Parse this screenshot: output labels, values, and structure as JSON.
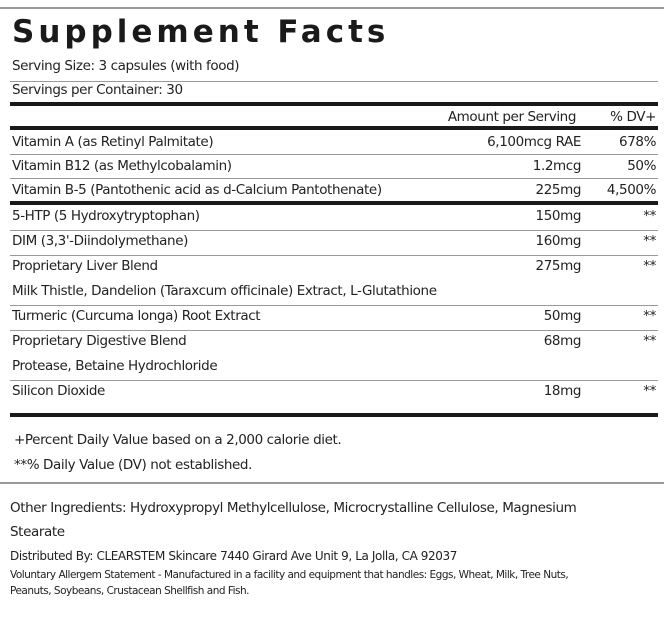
{
  "title": "Supplement Facts",
  "serving_size": "Serving Size: 3 capsules (with food)",
  "servings_per_container": "Servings per Container: 30",
  "header": {
    "amount": "Amount per Serving",
    "dv": "% DV+"
  },
  "vitamins": [
    {
      "name": "Vitamin A (as Retinyl Palmitate)",
      "amount": "6,100mcg RAE",
      "dv": "678%"
    },
    {
      "name": "Vitamin B12 (as Methylcobalamin)",
      "amount": "1.2mcg",
      "dv": "50%"
    },
    {
      "name": "Vitamin B-5 (Pantothenic acid as d-Calcium Pantothenate)",
      "amount": "225mg",
      "dv": "4,500%"
    }
  ],
  "ingredients": [
    {
      "name": "5-HTP (5 Hydroxytryptophan)",
      "amount": "150mg",
      "dv": "**"
    },
    {
      "name": "DIM (3,3'-Diindolymethane)",
      "amount": "160mg",
      "dv": "**"
    },
    {
      "name": "Proprietary Liver Blend",
      "amount": "275mg",
      "dv": "**",
      "desc": "Milk Thistle, Dandelion (Taraxcum officinale) Extract, L-Glutathione"
    },
    {
      "name": "Turmeric (Curcuma longa) Root Extract",
      "amount": "50mg",
      "dv": "**"
    },
    {
      "name": "Proprietary Digestive Blend",
      "amount": "68mg",
      "dv": "**",
      "desc": "Protease, Betaine Hydrochloride"
    },
    {
      "name": "Silicon Dioxide",
      "amount": "18mg",
      "dv": "**"
    }
  ],
  "footnotes": [
    "+Percent Daily Value based on a 2,000 calorie diet.",
    "**% Daily Value (DV) not established."
  ],
  "other_ingredients": [
    "Other Ingredients: Hydroxypropyl Methylcellulose, Microcrystalline Cellulose, Magnesium",
    "Stearate"
  ],
  "distributed_by": "Distributed By: CLEARSTEM Skincare 7440 Girard Ave Unit 9, La Jolla, CA 92037",
  "allergen": [
    "Voluntary Allergem Statement - Manufactured in a facility and equipment that handles: Eggs, Wheat, Milk, Tree Nuts,",
    "Peanuts, Soybeans, Crustacean Shellfish and Fish."
  ]
}
